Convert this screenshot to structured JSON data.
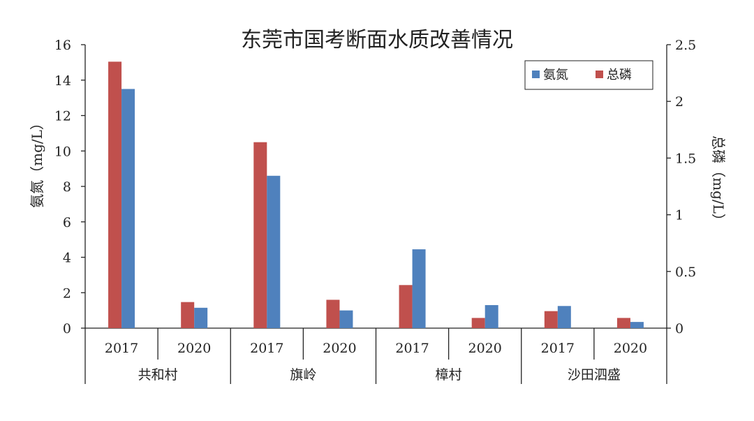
{
  "chart_data": {
    "type": "bar",
    "title": "东莞市国考断面水质改善情况",
    "left_ylabel": "氨氮（mg/L）",
    "right_ylabel": "总磷（mg/L）",
    "left_ylim": [
      0,
      16
    ],
    "left_yticks": [
      "0",
      "2",
      "4",
      "6",
      "8",
      "10",
      "12",
      "14",
      "16"
    ],
    "right_ylim": [
      0,
      2.5
    ],
    "right_yticks": [
      "0",
      "0.5",
      "1",
      "1.5",
      "2",
      "2.5"
    ],
    "groups": [
      "共和村",
      "旗岭",
      "樟村",
      "沙田泗盛"
    ],
    "categories": [
      "2017",
      "2020",
      "2017",
      "2020",
      "2017",
      "2020",
      "2017",
      "2020"
    ],
    "series": [
      {
        "name": "总磷",
        "axis": "right",
        "color": "#c0504d",
        "values": [
          2.35,
          0.23,
          1.64,
          0.25,
          0.38,
          0.09,
          0.15,
          0.09
        ]
      },
      {
        "name": "氨氮",
        "axis": "left",
        "color": "#4f81bd",
        "values": [
          13.5,
          1.15,
          8.6,
          1.0,
          4.45,
          1.3,
          1.25,
          0.35
        ]
      }
    ],
    "legend": {
      "placement": "top-right",
      "order": [
        "氨氮",
        "总磷"
      ]
    },
    "grid": false
  }
}
